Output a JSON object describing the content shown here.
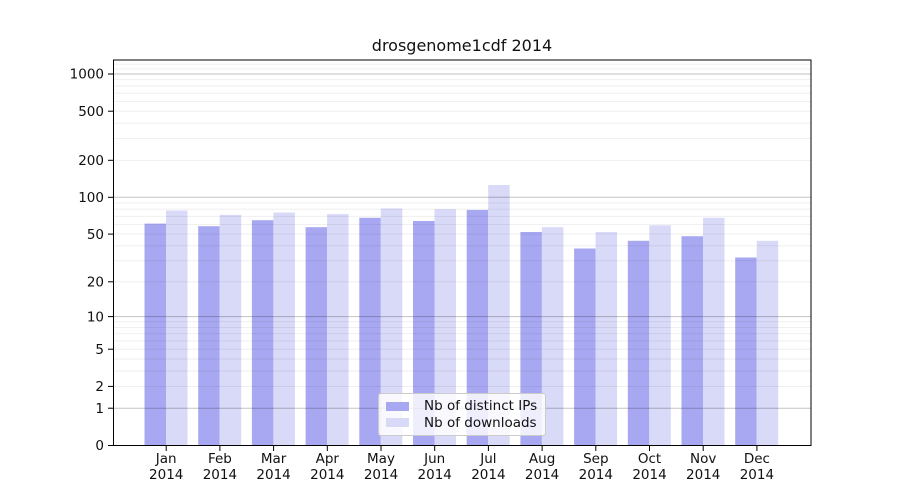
{
  "chart_data": {
    "type": "bar",
    "title": "drosgenome1cdf 2014",
    "categories": [
      "Jan",
      "Feb",
      "Mar",
      "Apr",
      "May",
      "Jun",
      "Jul",
      "Aug",
      "Sep",
      "Oct",
      "Nov",
      "Dec"
    ],
    "year": "2014",
    "series": [
      {
        "name": "Nb of distinct IPs",
        "color": "#a8a8f2",
        "values": [
          61,
          58,
          65,
          57,
          68,
          64,
          79,
          52,
          38,
          44,
          48,
          32
        ]
      },
      {
        "name": "Nb of downloads",
        "color": "#d9d9f8",
        "values": [
          78,
          72,
          75,
          73,
          81,
          80,
          126,
          57,
          52,
          59,
          68,
          44
        ]
      }
    ],
    "yscale": "log1p",
    "ylim": [
      0,
      1300
    ],
    "ytick_values": [
      0,
      1,
      2,
      5,
      10,
      20,
      50,
      100,
      200,
      500,
      1000
    ],
    "grid": "on",
    "legend_position": "lower center",
    "colors": {
      "major_gridline": "rgba(0,0,0,0.24)",
      "minor_gridline": "rgba(0,0,0,0.07)",
      "spine": "#000000",
      "text": "#111111",
      "background": "#ffffff"
    }
  }
}
